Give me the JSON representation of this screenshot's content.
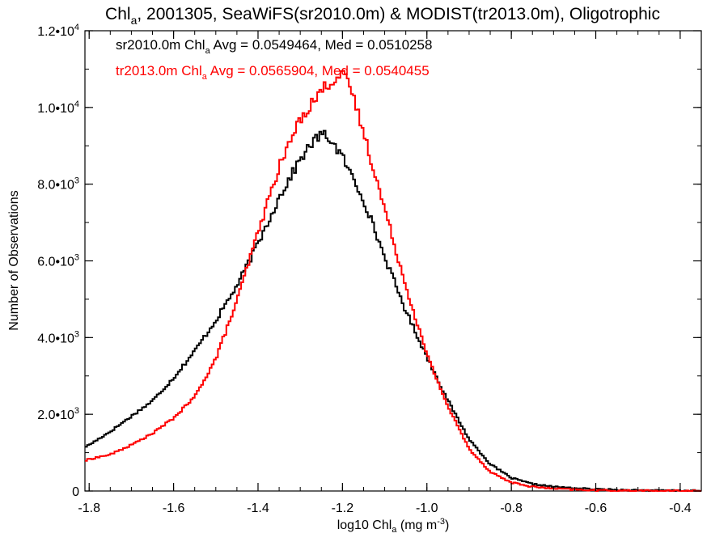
{
  "chart_data": {
    "type": "histogram-step",
    "title": {
      "pre": "Chl",
      "sub": "a",
      "post": ", 2001305, SeaWiFS(sr2010.0m) & MODIST(tr2013.0m), Oligotrophic"
    },
    "xlabel": {
      "pre": "log10 Chl",
      "sub": "a",
      "post": " (mg m",
      "sup": "-3",
      "end": ")"
    },
    "ylabel": "Number of Observations",
    "xlim": [
      -1.81,
      -0.35
    ],
    "ylim": [
      0,
      12000
    ],
    "x_ticks": [
      -1.8,
      -1.6,
      -1.4,
      -1.2,
      -1.0,
      -0.8,
      -0.6,
      -0.4
    ],
    "x_tick_labels": [
      "-1.8",
      "-1.6",
      "-1.4",
      "-1.2",
      "-1.0",
      "-0.8",
      "-0.6",
      "-0.4"
    ],
    "y_ticks": [
      0,
      2000,
      4000,
      6000,
      8000,
      10000,
      12000
    ],
    "y_tick_labels": [
      {
        "mant": "0",
        "exp": ""
      },
      {
        "mant": "2.0•10",
        "exp": "3"
      },
      {
        "mant": "4.0•10",
        "exp": "3"
      },
      {
        "mant": "6.0•10",
        "exp": "3"
      },
      {
        "mant": "8.0•10",
        "exp": "3"
      },
      {
        "mant": "1.0•10",
        "exp": "4"
      },
      {
        "mant": "1.2•10",
        "exp": "4"
      }
    ],
    "grid": false,
    "annotations": [
      {
        "color": "#000000",
        "pre": "sr2010.0m Chl",
        "sub": "a",
        "post": " Avg = 0.0549464, Med = 0.0510258"
      },
      {
        "color": "#ff0000",
        "pre": "tr2013.0m Chl",
        "sub": "a",
        "post": " Avg = 0.0565904, Med = 0.0540455"
      }
    ],
    "series": [
      {
        "color": "#000000",
        "x": [
          -1.81,
          -1.8,
          -1.75,
          -1.7,
          -1.65,
          -1.6,
          -1.55,
          -1.5,
          -1.45,
          -1.4,
          -1.35,
          -1.3,
          -1.27,
          -1.25,
          -1.23,
          -1.2,
          -1.15,
          -1.1,
          -1.05,
          -1.0,
          -0.95,
          -0.9,
          -0.85,
          -0.8,
          -0.75,
          -0.7,
          -0.65,
          -0.6,
          -0.55,
          -0.5,
          -0.45,
          -0.4,
          -0.35
        ],
        "y": [
          1150,
          1200,
          1550,
          1950,
          2350,
          2950,
          3650,
          4450,
          5350,
          6450,
          7650,
          8650,
          9100,
          9300,
          9200,
          8700,
          7600,
          6100,
          4700,
          3500,
          2350,
          1350,
          700,
          340,
          180,
          110,
          70,
          45,
          30,
          20,
          12,
          8,
          5
        ]
      },
      {
        "color": "#ff0000",
        "x": [
          -1.81,
          -1.8,
          -1.75,
          -1.7,
          -1.65,
          -1.6,
          -1.55,
          -1.5,
          -1.45,
          -1.4,
          -1.35,
          -1.3,
          -1.27,
          -1.25,
          -1.22,
          -1.2,
          -1.18,
          -1.15,
          -1.1,
          -1.05,
          -1.0,
          -0.95,
          -0.9,
          -0.85,
          -0.8,
          -0.75,
          -0.7,
          -0.65,
          -0.6,
          -0.55,
          -0.5,
          -0.45,
          -0.4,
          -0.35
        ],
        "y": [
          780,
          830,
          950,
          1200,
          1500,
          1900,
          2450,
          3450,
          4950,
          6750,
          8450,
          9700,
          10150,
          10450,
          10750,
          10850,
          10500,
          9350,
          7350,
          5350,
          3550,
          2200,
          1100,
          500,
          220,
          110,
          60,
          35,
          20,
          12,
          8,
          5,
          3,
          2
        ]
      }
    ]
  }
}
